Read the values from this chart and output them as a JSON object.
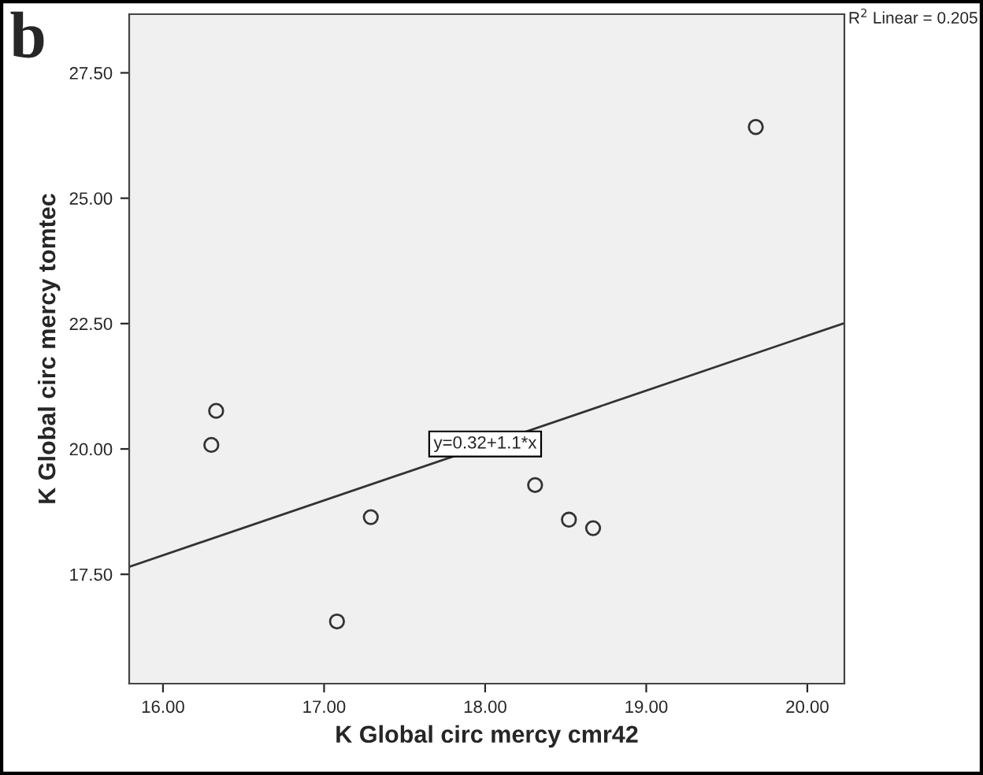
{
  "chart_data": {
    "type": "scatter",
    "xlabel": "K Global circ mercy cmr42",
    "ylabel": "K Global circ mercy tomtec",
    "xlim": [
      15.79,
      20.23
    ],
    "ylim": [
      15.32,
      28.67
    ],
    "xticks": [
      {
        "value": 16,
        "label": "16.00"
      },
      {
        "value": 17,
        "label": "17.00"
      },
      {
        "value": 18,
        "label": "18.00"
      },
      {
        "value": 19,
        "label": "19.00"
      },
      {
        "value": 20,
        "label": "20.00"
      }
    ],
    "yticks": [
      {
        "value": 17.5,
        "label": "17.50"
      },
      {
        "value": 20,
        "label": "20.00"
      },
      {
        "value": 22.5,
        "label": "22.50"
      },
      {
        "value": 25,
        "label": "25.00"
      },
      {
        "value": 27.5,
        "label": "27.50"
      }
    ],
    "grid": false,
    "series": [
      {
        "marker": "circle",
        "color": "#333333",
        "x": [
          19.68,
          16.33,
          16.3,
          17.29,
          17.08,
          18.31,
          18.52,
          18.67
        ],
        "values": [
          26.42,
          20.76,
          20.08,
          18.64,
          16.56,
          19.28,
          18.59,
          18.42
        ]
      },
      {
        "type": "line",
        "color": "#333333",
        "x": [
          15.79,
          20.23
        ],
        "values": [
          17.65,
          22.51
        ]
      }
    ],
    "annotations": [
      "b",
      "R$^{2}$ Linear = 0.205",
      {
        "text": "y=0.32+1.1*x",
        "x": 18.0,
        "y": 20.1
      }
    ]
  }
}
